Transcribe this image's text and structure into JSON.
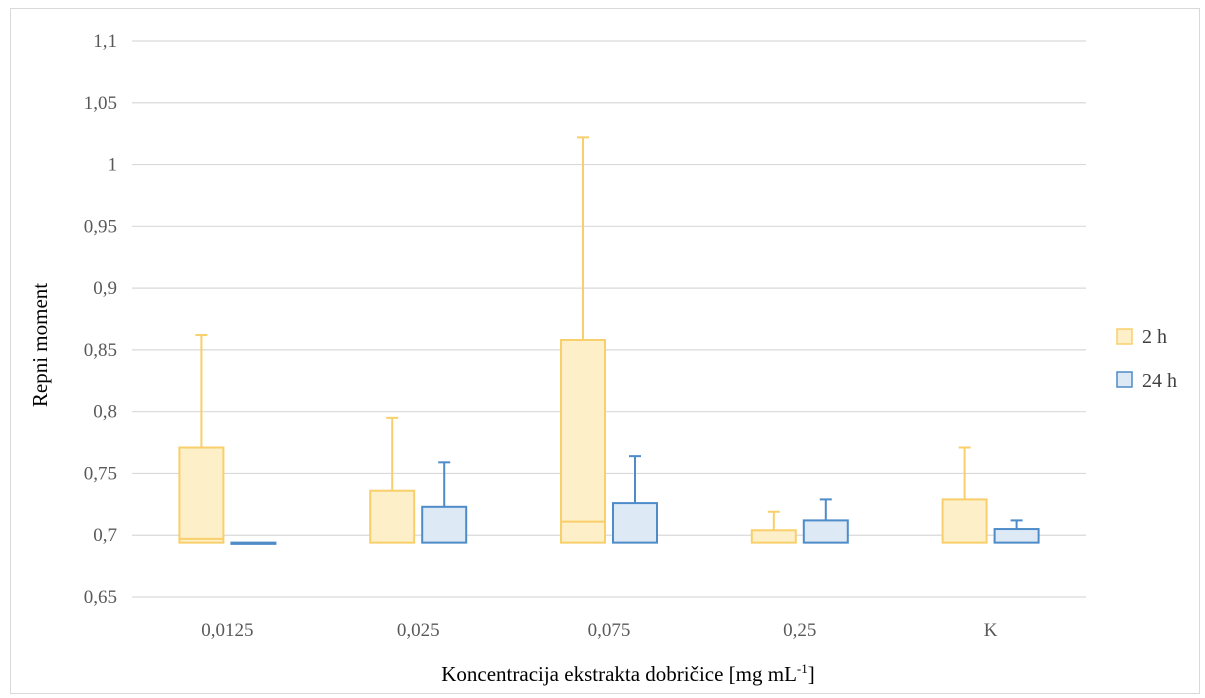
{
  "chart_data": {
    "type": "box",
    "xlabel": "Koncentracija ekstrakta dobričice [mg mL",
    "xlabel_sup": "-1",
    "xlabel_end": "]",
    "ylabel": "Repni moment",
    "ylim": [
      0.65,
      1.1
    ],
    "yticks": [
      0.65,
      0.7,
      0.75,
      0.8,
      0.85,
      0.9,
      0.95,
      1.0,
      1.05,
      1.1
    ],
    "ytick_labels": [
      "0,65",
      "0,7",
      "0,75",
      "0,8",
      "0,85",
      "0,9",
      "0,95",
      "1",
      "1,05",
      "1,1"
    ],
    "categories": [
      "0,0125",
      "0,025",
      "0,075",
      "0,25",
      "K"
    ],
    "grid": true,
    "legend_position": "right",
    "series": [
      {
        "name": "2 h",
        "fill": "#fdefc8",
        "stroke": "#f8cf6a",
        "boxes": [
          {
            "bottom": 0.694,
            "median": 0.697,
            "top": 0.771,
            "whisker": 0.862
          },
          {
            "bottom": 0.694,
            "median": 0.694,
            "top": 0.736,
            "whisker": 0.795
          },
          {
            "bottom": 0.694,
            "median": 0.711,
            "top": 0.858,
            "whisker": 1.022
          },
          {
            "bottom": 0.694,
            "median": 0.694,
            "top": 0.704,
            "whisker": 0.719
          },
          {
            "bottom": 0.694,
            "median": 0.694,
            "top": 0.729,
            "whisker": 0.771
          }
        ]
      },
      {
        "name": "24 h",
        "fill": "#dde9f5",
        "stroke": "#4d8bc9",
        "boxes": [
          {
            "bottom": 0.693,
            "median": 0.693,
            "top": 0.694,
            "whisker": 0.694
          },
          {
            "bottom": 0.694,
            "median": 0.694,
            "top": 0.723,
            "whisker": 0.759
          },
          {
            "bottom": 0.694,
            "median": 0.694,
            "top": 0.726,
            "whisker": 0.764
          },
          {
            "bottom": 0.694,
            "median": 0.694,
            "top": 0.712,
            "whisker": 0.729
          },
          {
            "bottom": 0.694,
            "median": 0.694,
            "top": 0.705,
            "whisker": 0.712
          }
        ]
      }
    ]
  }
}
